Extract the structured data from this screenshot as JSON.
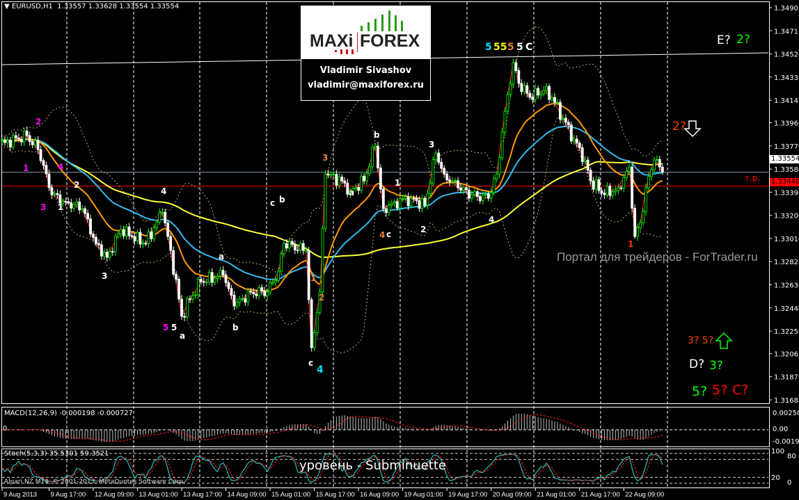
{
  "header": {
    "symbol": "EURUSD,H1",
    "ohlc": "1.33557 1.33628 1.33554 1.33554"
  },
  "logo": {
    "brand_left": "MAXi",
    "brand_right": "FOREX",
    "author": "Vladimir Sivashov",
    "email": "vladimir@maxiforex.ru"
  },
  "watermark": "Портал для трейдеров - ForTrader.ru",
  "level_caption": "уровень - Subminuette",
  "copyright": "Alpari NZ MT4, © 2001-2013, MetaQuotes Software Corp.",
  "tp_label": "т.р.",
  "colors": {
    "bull": "#00ff00",
    "bear": "#ffffff",
    "ma_fast": "#ff9900",
    "ma_mid": "#33bbee",
    "ma_slow": "#ffff33",
    "bands": "#c8a878",
    "zigzag": "#ff2020",
    "tp_line": "#ff0000",
    "bid_line": "#8899aa",
    "macd_hist": "#c0c0c0",
    "macd_signal": "#ff2020",
    "stoch_main": "#20c0c0",
    "stoch_signal": "#ff2020"
  },
  "wave_labels": [
    {
      "text": "2",
      "color": "#ff00ff"
    },
    {
      "text": "1",
      "color": "#ff00ff"
    },
    {
      "text": "4",
      "color": "#ff00ff"
    },
    {
      "text": "3",
      "color": "#ff00ff"
    },
    {
      "text": "5",
      "color": "#ff00ff"
    },
    {
      "text": "2",
      "color": "#ffffff"
    },
    {
      "text": "1",
      "color": "#ffffff"
    },
    {
      "text": "3",
      "color": "#ffffff"
    },
    {
      "text": "4",
      "color": "#ffffff"
    },
    {
      "text": "5",
      "color": "#ffffff"
    },
    {
      "text": "a",
      "color": "#ffffff"
    },
    {
      "text": "a",
      "color": "#ffffff"
    },
    {
      "text": "b",
      "color": "#ffffff"
    },
    {
      "text": "c",
      "color": "#ffffff"
    },
    {
      "text": "b",
      "color": "#ffffff"
    },
    {
      "text": "c",
      "color": "#ffffff"
    },
    {
      "text": "b",
      "color": "#ffffff"
    },
    {
      "text": "a",
      "color": "#ffffff"
    },
    {
      "text": "c",
      "color": "#ffffff"
    },
    {
      "text": "1",
      "color": "#ffffff"
    },
    {
      "text": "2",
      "color": "#ffffff"
    },
    {
      "text": "3",
      "color": "#ffffff"
    },
    {
      "text": "4",
      "color": "#ffffff"
    },
    {
      "text": "C",
      "color": "#ffffff"
    },
    {
      "text": "1",
      "color": "#e08040"
    },
    {
      "text": "2",
      "color": "#e08040"
    },
    {
      "text": "3",
      "color": "#e08040"
    },
    {
      "text": "4",
      "color": "#e08040"
    },
    {
      "text": "5",
      "color": "#e08040"
    },
    {
      "text": "4",
      "color": "#00e0ff"
    },
    {
      "text": "5",
      "color": "#00e0ff"
    },
    {
      "text": "55",
      "color": "#ffff00"
    },
    {
      "text": "5",
      "color": "#ffffff"
    },
    {
      "text": "1",
      "color": "#ff3300"
    }
  ],
  "forecast_labels": [
    {
      "text": "E?",
      "color": "#ffffff"
    },
    {
      "text": "2?",
      "color": "#00ff00"
    },
    {
      "text": "2?",
      "color": "#ff4400"
    },
    {
      "text": "3? 5?",
      "color": "#ff4400"
    },
    {
      "text": "D?",
      "color": "#ffffff"
    },
    {
      "text": "3?",
      "color": "#00ff00"
    },
    {
      "text": "5?",
      "color": "#00ff00"
    },
    {
      "text": "5?",
      "color": "#ff0000"
    },
    {
      "text": "C?",
      "color": "#ff0000"
    }
  ],
  "arrows": [
    {
      "icon": "arrow-down-icon",
      "color": "#ffffff"
    },
    {
      "icon": "arrow-up-icon",
      "color": "#00ff00"
    }
  ],
  "price_axis": [
    "1.34905",
    "1.34715",
    "1.34525",
    "1.34335",
    "1.34145",
    "1.33960",
    "1.33770",
    "1.33580",
    "1.33390",
    "1.33200",
    "1.33010",
    "1.32820",
    "1.32630",
    "1.32440",
    "1.32250",
    "1.32065",
    "1.31875",
    "1.31685"
  ],
  "current_price": "1.33554",
  "tp_price": "1.33440",
  "macd": {
    "title": "MACD(12,26,9) -0.000198 -0.000727",
    "axis": [
      "0.002506",
      "0.00",
      "-0.001961"
    ],
    "zero_label": "0"
  },
  "stoch": {
    "title": "Stoch(5,3,3) 35.5301 59.3521",
    "axis": [
      "100",
      "80",
      "20",
      "0"
    ]
  },
  "time_axis": [
    "9 Aug 2013",
    "9 Aug 17:00",
    "12 Aug 09:00",
    "13 Aug 01:00",
    "13 Aug 17:00",
    "14 Aug 09:00",
    "15 Aug 01:00",
    "15 Aug 17:00",
    "16 Aug 09:00",
    "19 Aug 01:00",
    "19 Aug 17:00",
    "20 Aug 09:00",
    "21 Aug 01:00",
    "21 Aug 17:00",
    "22 Aug 09:00"
  ],
  "chart_data": {
    "type": "candlestick",
    "title": "EURUSD,H1",
    "ylim": [
      1.31685,
      1.34905
    ],
    "grid": "vertical dashed",
    "levels": {
      "resistance_line": [
        1.34437,
        1.34534
      ],
      "tp": 1.3344,
      "bid": 1.33554
    },
    "price_path": [
      {
        "t": "9 Aug 01:00",
        "p": 1.33797
      },
      {
        "t": "9 Aug 09:00",
        "p": 1.33854
      },
      {
        "t": "9 Aug 13:00",
        "p": 1.3374
      },
      {
        "t": "9 Aug 16:00",
        "p": 1.3354
      },
      {
        "t": "9 Aug 18:00",
        "p": 1.33369
      },
      {
        "t": "9 Aug 23:00",
        "p": 1.33312
      },
      {
        "t": "12 Aug 05:00",
        "p": 1.33255
      },
      {
        "t": "12 Aug 10:00",
        "p": 1.32969
      },
      {
        "t": "12 Aug 14:00",
        "p": 1.32855
      },
      {
        "t": "12 Aug 19:00",
        "p": 1.33083
      },
      {
        "t": "12 Aug 23:00",
        "p": 1.33026
      },
      {
        "t": "13 Aug 04:00",
        "p": 1.32969
      },
      {
        "t": "13 Aug 10:00",
        "p": 1.33226
      },
      {
        "t": "13 Aug 13:00",
        "p": 1.32912
      },
      {
        "t": "13 Aug 17:00",
        "p": 1.3237
      },
      {
        "t": "13 Aug 20:00",
        "p": 1.32512
      },
      {
        "t": "14 Aug 00:00",
        "p": 1.32655
      },
      {
        "t": "14 Aug 08:00",
        "p": 1.32712
      },
      {
        "t": "14 Aug 12:00",
        "p": 1.32455
      },
      {
        "t": "14 Aug 18:00",
        "p": 1.3257
      },
      {
        "t": "15 Aug 00:00",
        "p": 1.3257
      },
      {
        "t": "15 Aug 04:00",
        "p": 1.32741
      },
      {
        "t": "15 Aug 06:00",
        "p": 1.32969
      },
      {
        "t": "15 Aug 14:00",
        "p": 1.32912
      },
      {
        "t": "15 Aug 16:00",
        "p": 1.32113
      },
      {
        "t": "15 Aug 19:00",
        "p": 1.3257
      },
      {
        "t": "15 Aug 21:00",
        "p": 1.3354
      },
      {
        "t": "16 Aug 03:00",
        "p": 1.33483
      },
      {
        "t": "16 Aug 06:00",
        "p": 1.33398
      },
      {
        "t": "16 Aug 11:00",
        "p": 1.33483
      },
      {
        "t": "16 Aug 15:00",
        "p": 1.33769
      },
      {
        "t": "16 Aug 18:00",
        "p": 1.33255
      },
      {
        "t": "16 Aug 22:00",
        "p": 1.33312
      },
      {
        "t": "19 Aug 04:00",
        "p": 1.3334
      },
      {
        "t": "19 Aug 09:00",
        "p": 1.33283
      },
      {
        "t": "19 Aug 13:00",
        "p": 1.33712
      },
      {
        "t": "19 Aug 16:00",
        "p": 1.3354
      },
      {
        "t": "19 Aug 21:00",
        "p": 1.33426
      },
      {
        "t": "20 Aug 02:00",
        "p": 1.33369
      },
      {
        "t": "20 Aug 08:00",
        "p": 1.3334
      },
      {
        "t": "20 Aug 11:00",
        "p": 1.3354
      },
      {
        "t": "20 Aug 14:00",
        "p": 1.34054
      },
      {
        "t": "20 Aug 17:00",
        "p": 1.34454
      },
      {
        "t": "20 Aug 19:00",
        "p": 1.34283
      },
      {
        "t": "20 Aug 23:00",
        "p": 1.34168
      },
      {
        "t": "21 Aug 04:00",
        "p": 1.34225
      },
      {
        "t": "21 Aug 07:00",
        "p": 1.34168
      },
      {
        "t": "21 Aug 11:00",
        "p": 1.33997
      },
      {
        "t": "21 Aug 15:00",
        "p": 1.33826
      },
      {
        "t": "21 Aug 19:00",
        "p": 1.33654
      },
      {
        "t": "21 Aug 21:00",
        "p": 1.33483
      },
      {
        "t": "22 Aug 02:00",
        "p": 1.33369
      },
      {
        "t": "22 Aug 07:00",
        "p": 1.33426
      },
      {
        "t": "22 Aug 11:00",
        "p": 1.33597
      },
      {
        "t": "22 Aug 13:00",
        "p": 1.33026
      },
      {
        "t": "22 Aug 15:00",
        "p": 1.3314
      },
      {
        "t": "22 Aug 17:00",
        "p": 1.33426
      },
      {
        "t": "22 Aug 20:00",
        "p": 1.33654
      },
      {
        "t": "22 Aug 23:00",
        "p": 1.33554
      }
    ]
  }
}
